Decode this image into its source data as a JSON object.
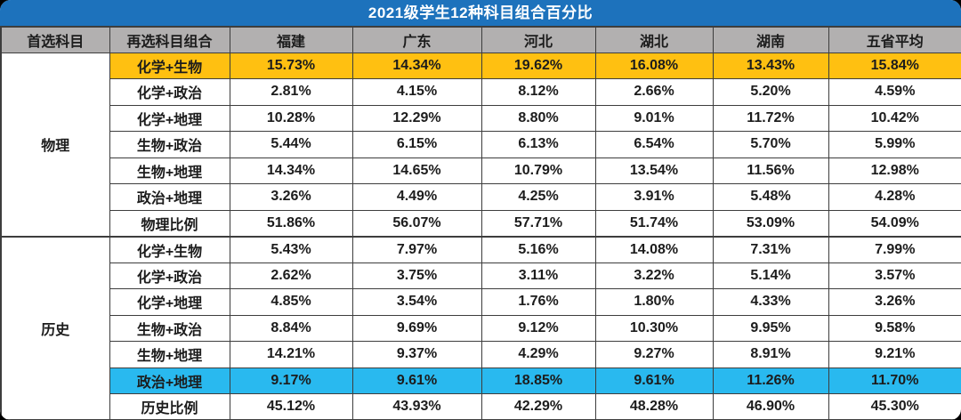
{
  "title": "2021级学生12种科目组合百分比",
  "table": {
    "headers": [
      "首选科目",
      "再选科目组合",
      "福建",
      "广东",
      "河北",
      "湖北",
      "湖南",
      "五省平均"
    ],
    "sections": [
      {
        "group": "物理",
        "rows": [
          {
            "label": "化学+生物",
            "values": [
              "15.73%",
              "14.34%",
              "19.62%",
              "16.08%",
              "13.43%",
              "15.84%"
            ],
            "highlight": "orange"
          },
          {
            "label": "化学+政治",
            "values": [
              "2.81%",
              "4.15%",
              "8.12%",
              "2.66%",
              "5.20%",
              "4.59%"
            ],
            "highlight": ""
          },
          {
            "label": "化学+地理",
            "values": [
              "10.28%",
              "12.29%",
              "8.80%",
              "9.01%",
              "11.72%",
              "10.42%"
            ],
            "highlight": ""
          },
          {
            "label": "生物+政治",
            "values": [
              "5.44%",
              "6.15%",
              "6.13%",
              "6.54%",
              "5.70%",
              "5.99%"
            ],
            "highlight": ""
          },
          {
            "label": "生物+地理",
            "values": [
              "14.34%",
              "14.65%",
              "10.79%",
              "13.54%",
              "11.56%",
              "12.98%"
            ],
            "highlight": ""
          },
          {
            "label": "政治+地理",
            "values": [
              "3.26%",
              "4.49%",
              "4.25%",
              "3.91%",
              "5.48%",
              "4.28%"
            ],
            "highlight": ""
          },
          {
            "label": "物理比例",
            "values": [
              "51.86%",
              "56.07%",
              "57.71%",
              "51.74%",
              "53.09%",
              "54.09%"
            ],
            "highlight": ""
          }
        ]
      },
      {
        "group": "历史",
        "rows": [
          {
            "label": "化学+生物",
            "values": [
              "5.43%",
              "7.97%",
              "5.16%",
              "14.08%",
              "7.31%",
              "7.99%"
            ],
            "highlight": ""
          },
          {
            "label": "化学+政治",
            "values": [
              "2.62%",
              "3.75%",
              "3.11%",
              "3.22%",
              "5.14%",
              "3.57%"
            ],
            "highlight": ""
          },
          {
            "label": "化学+地理",
            "values": [
              "4.85%",
              "3.54%",
              "1.76%",
              "1.80%",
              "4.33%",
              "3.26%"
            ],
            "highlight": ""
          },
          {
            "label": "生物+政治",
            "values": [
              "8.84%",
              "9.69%",
              "9.12%",
              "10.30%",
              "9.95%",
              "9.58%"
            ],
            "highlight": ""
          },
          {
            "label": "生物+地理",
            "values": [
              "14.21%",
              "9.37%",
              "4.29%",
              "9.27%",
              "8.91%",
              "9.21%"
            ],
            "highlight": ""
          },
          {
            "label": "政治+地理",
            "values": [
              "9.17%",
              "9.61%",
              "18.85%",
              "9.61%",
              "11.26%",
              "11.70%"
            ],
            "highlight": "cyan"
          },
          {
            "label": "历史比例",
            "values": [
              "45.12%",
              "43.93%",
              "42.29%",
              "48.28%",
              "46.90%",
              "45.30%"
            ],
            "highlight": ""
          }
        ]
      }
    ]
  },
  "colors": {
    "title_bar": "#1d72bc",
    "title_text": "#ffffff",
    "header_bg": "#b2b0b0",
    "orange_highlight": "#ffc011",
    "cyan_highlight": "#29b9ef",
    "border": "#3d3d3d",
    "cell_text": "#1c1c1c"
  },
  "chart_data": {
    "type": "table",
    "title": "2021级学生12种科目组合百分比",
    "columns": [
      "首选科目",
      "再选科目组合",
      "福建",
      "广东",
      "河北",
      "湖北",
      "湖南",
      "五省平均"
    ],
    "rows": [
      [
        "物理",
        "化学+生物",
        15.73,
        14.34,
        19.62,
        16.08,
        13.43,
        15.84
      ],
      [
        "物理",
        "化学+政治",
        2.81,
        4.15,
        8.12,
        2.66,
        5.2,
        4.59
      ],
      [
        "物理",
        "化学+地理",
        10.28,
        12.29,
        8.8,
        9.01,
        11.72,
        10.42
      ],
      [
        "物理",
        "生物+政治",
        5.44,
        6.15,
        6.13,
        6.54,
        5.7,
        5.99
      ],
      [
        "物理",
        "生物+地理",
        14.34,
        14.65,
        10.79,
        13.54,
        11.56,
        12.98
      ],
      [
        "物理",
        "政治+地理",
        3.26,
        4.49,
        4.25,
        3.91,
        5.48,
        4.28
      ],
      [
        "物理",
        "物理比例",
        51.86,
        56.07,
        57.71,
        51.74,
        53.09,
        54.09
      ],
      [
        "历史",
        "化学+生物",
        5.43,
        7.97,
        5.16,
        14.08,
        7.31,
        7.99
      ],
      [
        "历史",
        "化学+政治",
        2.62,
        3.75,
        3.11,
        3.22,
        5.14,
        3.57
      ],
      [
        "历史",
        "化学+地理",
        4.85,
        3.54,
        1.76,
        1.8,
        4.33,
        3.26
      ],
      [
        "历史",
        "生物+政治",
        8.84,
        9.69,
        9.12,
        10.3,
        9.95,
        9.58
      ],
      [
        "历史",
        "生物+地理",
        14.21,
        9.37,
        4.29,
        9.27,
        8.91,
        9.21
      ],
      [
        "历史",
        "政治+地理",
        9.17,
        9.61,
        18.85,
        9.61,
        11.26,
        11.7
      ],
      [
        "历史",
        "历史比例",
        45.12,
        43.93,
        42.29,
        48.28,
        46.9,
        45.3
      ]
    ],
    "units": "percent",
    "highlighted_rows": [
      {
        "row": "物理 / 化学+生物",
        "color": "#ffc011"
      },
      {
        "row": "历史 / 政治+地理",
        "color": "#29b9ef"
      }
    ]
  }
}
